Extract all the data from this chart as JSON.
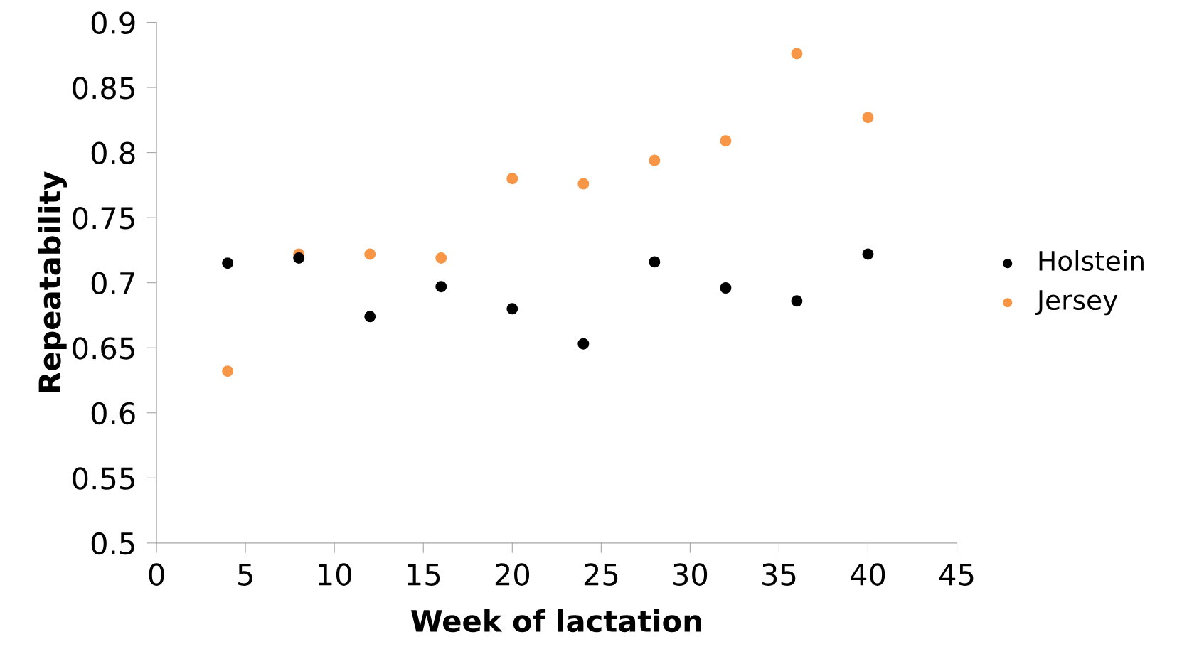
{
  "chart_data": {
    "type": "scatter",
    "xlabel": "Week of lactation",
    "ylabel": "Repeatability",
    "x": [
      4,
      8,
      12,
      16,
      20,
      24,
      28,
      32,
      36,
      40
    ],
    "series": [
      {
        "name": "Holstein",
        "color": "#000000",
        "values": [
          0.715,
          0.719,
          0.674,
          0.697,
          0.68,
          0.653,
          0.716,
          0.696,
          0.686,
          0.722
        ]
      },
      {
        "name": "Jersey",
        "color": "#f79646",
        "values": [
          0.632,
          0.722,
          0.722,
          0.719,
          0.78,
          0.776,
          0.794,
          0.809,
          0.876,
          0.827
        ]
      }
    ],
    "xlim": [
      0,
      45
    ],
    "xticks": [
      0,
      5,
      10,
      15,
      20,
      25,
      30,
      35,
      40,
      45
    ],
    "ylim": [
      0.5,
      0.9
    ],
    "yticks": [
      0.5,
      0.55,
      0.6,
      0.65,
      0.7,
      0.75,
      0.8,
      0.85,
      0.9
    ],
    "grid": false,
    "legend": "right",
    "marker": "circle"
  }
}
